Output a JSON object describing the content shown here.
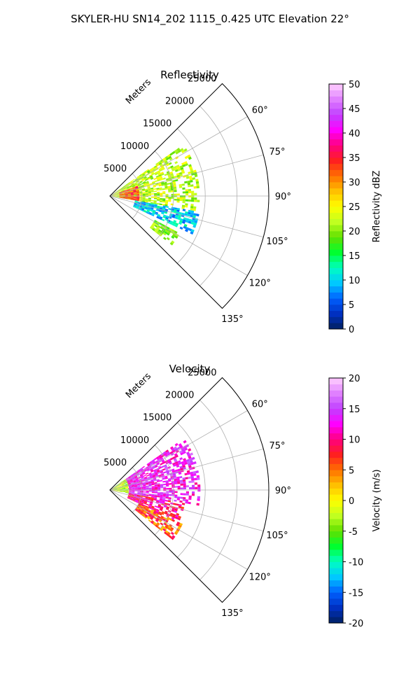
{
  "figure": {
    "suptitle": "SKYLER-HU  SN14_202  1115_0.425 UTC Elevation 22°"
  },
  "chart_data": [
    {
      "type": "heatmap",
      "projection": "polar-sector",
      "title": "Reflectivity",
      "radial_label": "Meters",
      "radial_ticks": [
        5000,
        10000,
        15000,
        20000,
        25000
      ],
      "radial_tick_labels": [
        "5000",
        "10000",
        "15000",
        "20000",
        "25000"
      ],
      "rlim": [
        0,
        25000
      ],
      "angle_ticks_deg": [
        60,
        75,
        90,
        105,
        120,
        135
      ],
      "angle_tick_labels": [
        "60°",
        "75°",
        "90°",
        "105°",
        "120°",
        "135°"
      ],
      "angle_range_deg": [
        45,
        135
      ],
      "grid": true,
      "colorbar": {
        "label": "Reflectivity dBZ",
        "ticks": [
          0,
          5,
          10,
          15,
          20,
          25,
          30,
          35,
          40,
          45,
          50
        ],
        "tick_labels": [
          "0",
          "5",
          "10",
          "15",
          "20",
          "25",
          "30",
          "35",
          "40",
          "45",
          "50"
        ],
        "range": [
          0,
          50
        ],
        "bands": 40
      },
      "echo_regions": [
        {
          "az": [
            55,
            100
          ],
          "r": [
            0,
            14000
          ],
          "values": [
            18,
            26
          ]
        },
        {
          "az": [
            70,
            100
          ],
          "r": [
            1500,
            4500
          ],
          "values": [
            28,
            37
          ]
        },
        {
          "az": [
            100,
            115
          ],
          "r": [
            4000,
            14000
          ],
          "values": [
            6,
            14
          ]
        },
        {
          "az": [
            118,
            128
          ],
          "r": [
            8000,
            12500
          ],
          "values": [
            17,
            23
          ]
        }
      ]
    },
    {
      "type": "heatmap",
      "projection": "polar-sector",
      "title": "Velocity",
      "radial_label": "Meters",
      "radial_ticks": [
        5000,
        10000,
        15000,
        20000,
        25000
      ],
      "radial_tick_labels": [
        "5000",
        "10000",
        "15000",
        "20000",
        "25000"
      ],
      "rlim": [
        0,
        25000
      ],
      "angle_ticks_deg": [
        60,
        75,
        90,
        105,
        120,
        135
      ],
      "angle_tick_labels": [
        "60°",
        "75°",
        "90°",
        "105°",
        "120°",
        "135°"
      ],
      "angle_range_deg": [
        45,
        135
      ],
      "grid": true,
      "colorbar": {
        "label": "Velocity (m/s)",
        "ticks": [
          -20,
          -15,
          -10,
          -5,
          0,
          5,
          10,
          15,
          20
        ],
        "tick_labels": [
          "-20",
          "-15",
          "-10",
          "-5",
          "0",
          "5",
          "10",
          "15",
          "20"
        ],
        "range": [
          -20,
          20
        ],
        "bands": 40
      },
      "echo_regions": [
        {
          "az": [
            55,
            100
          ],
          "r": [
            0,
            3000
          ],
          "values": [
            -7,
            1
          ]
        },
        {
          "az": [
            55,
            100
          ],
          "r": [
            3000,
            14000
          ],
          "values": [
            10,
            17
          ]
        },
        {
          "az": [
            100,
            115
          ],
          "r": [
            3000,
            12000
          ],
          "values": [
            6,
            14
          ]
        },
        {
          "az": [
            115,
            128
          ],
          "r": [
            5000,
            12500
          ],
          "values": [
            2,
            10
          ]
        }
      ]
    }
  ],
  "colors": {
    "grid": "#b0b0b0",
    "axis": "#000000",
    "colormap": [
      "#002060",
      "#0030c0",
      "#0060ff",
      "#00c8ff",
      "#00ffc0",
      "#00ff30",
      "#60e000",
      "#c0ff20",
      "#ffff00",
      "#ffc000",
      "#ff7000",
      "#ff2020",
      "#ff0080",
      "#ff00ff",
      "#c040ff",
      "#e080ff",
      "#ffd0ff"
    ]
  }
}
